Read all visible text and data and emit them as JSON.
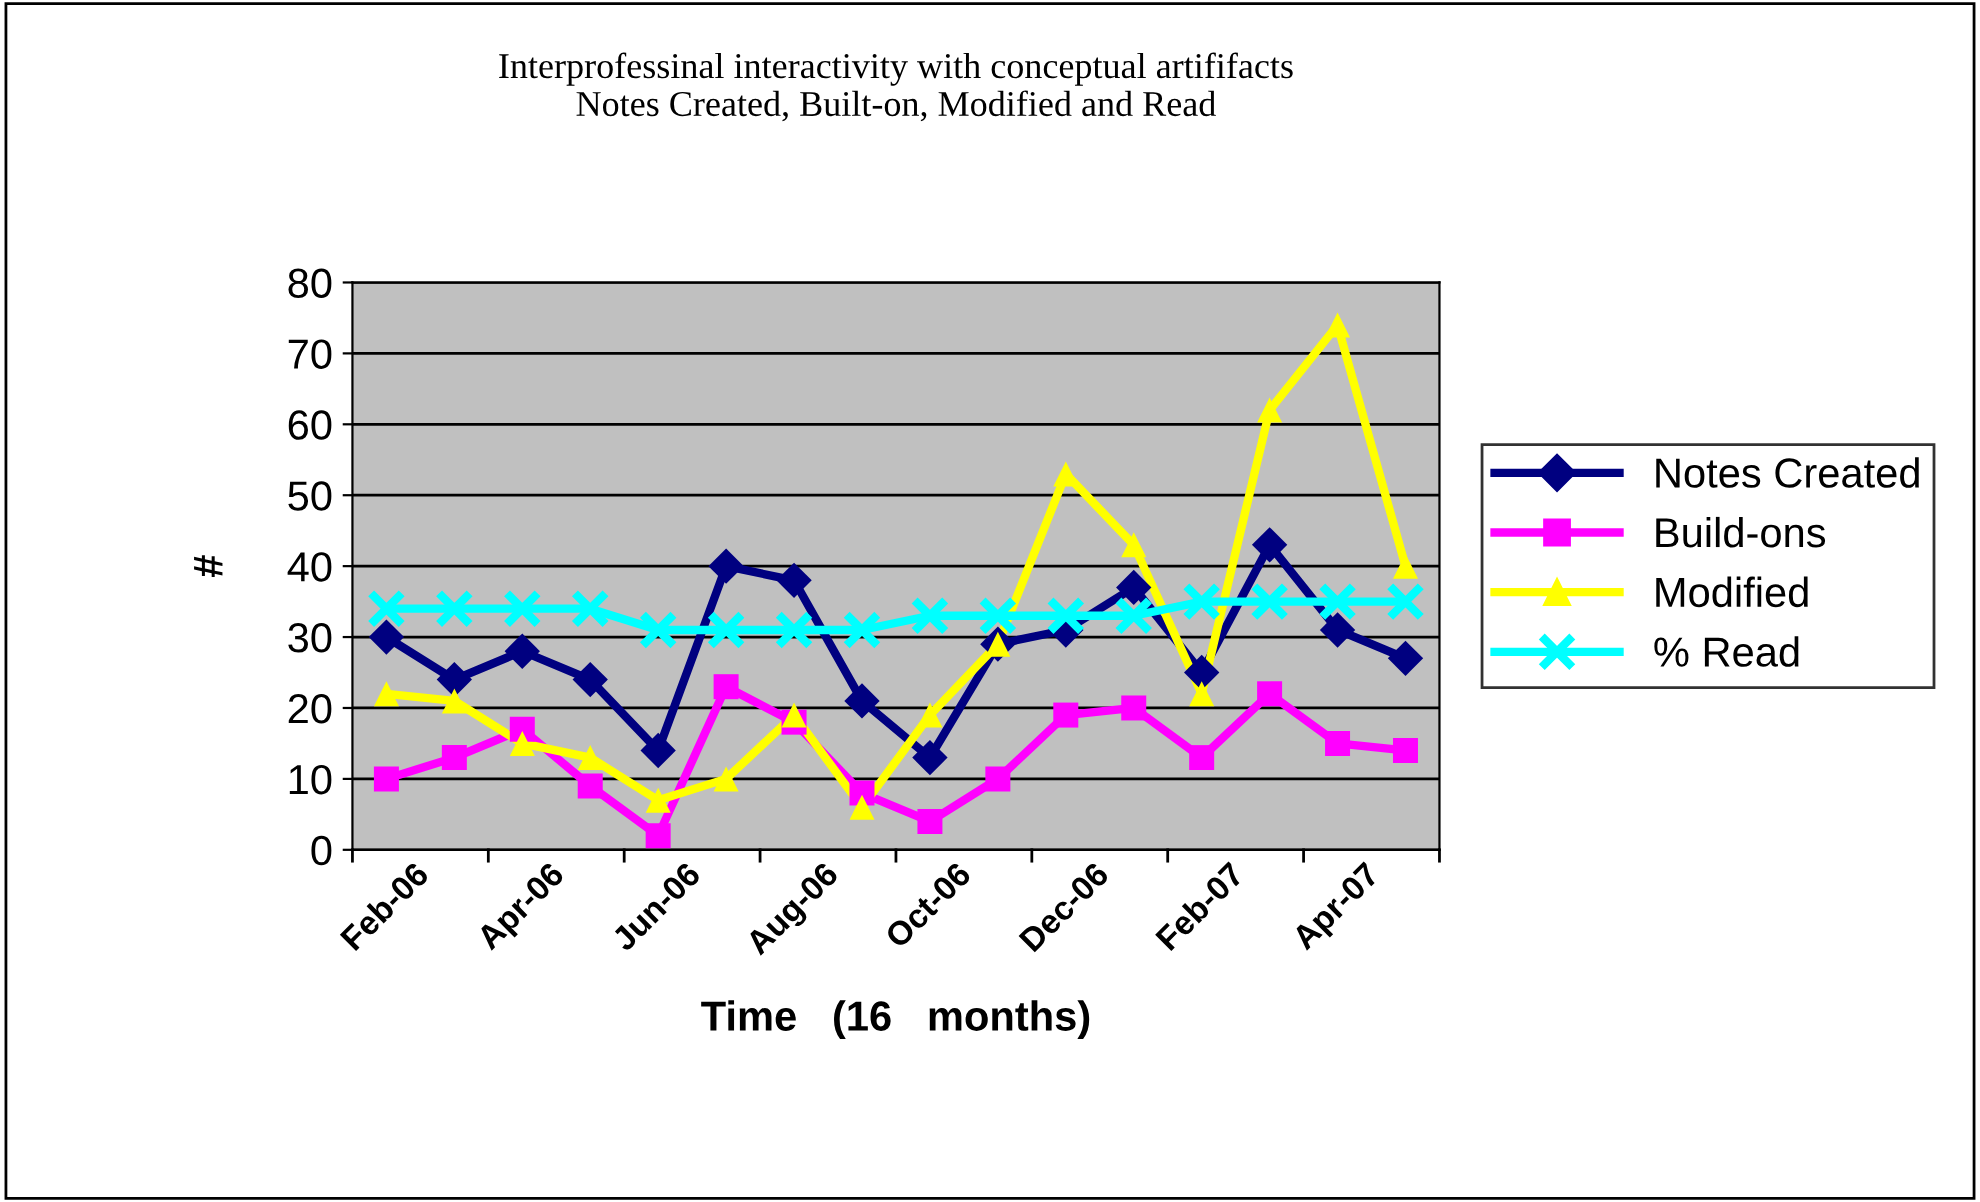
{
  "chart_data": {
    "type": "line",
    "title": "Interprofessinal interactivity with conceptual artififacts\nNotes Created, Built-on, Modified and Read",
    "xlabel": "Time   (16   months)",
    "ylabel": "#",
    "categories": [
      "Feb-06",
      null,
      "Apr-06",
      null,
      "Jun-06",
      null,
      "Aug-06",
      null,
      "Oct-06",
      null,
      "Dec-06",
      null,
      "Feb-07",
      null,
      "Apr-07",
      null
    ],
    "series": [
      {
        "name": "Notes Created",
        "color": "#000080",
        "marker": "diamond",
        "values": [
          30,
          24,
          28,
          24,
          14,
          40,
          38,
          21,
          13,
          29,
          31,
          37,
          25,
          43,
          31,
          27
        ]
      },
      {
        "name": "Build-ons",
        "color": "#ff00ff",
        "marker": "square",
        "values": [
          10,
          13,
          17,
          9,
          2,
          23,
          18,
          8,
          4,
          10,
          19,
          20,
          13,
          22,
          15,
          14
        ]
      },
      {
        "name": "Modified",
        "color": "#ffff00",
        "marker": "triangle",
        "values": [
          22,
          21,
          15,
          13,
          7,
          10,
          19,
          6,
          19,
          29,
          53,
          43,
          22,
          62,
          74,
          40
        ]
      },
      {
        "name": "% Read",
        "color": "#00ffff",
        "marker": "cross",
        "values": [
          34,
          34,
          34,
          34,
          31,
          31,
          31,
          31,
          33,
          33,
          33,
          33,
          35,
          35,
          35,
          35
        ]
      }
    ],
    "ylim": [
      0,
      80
    ],
    "yticks": [
      0,
      10,
      20,
      30,
      40,
      50,
      60,
      70,
      80
    ],
    "grid": "y",
    "legend": "right"
  }
}
